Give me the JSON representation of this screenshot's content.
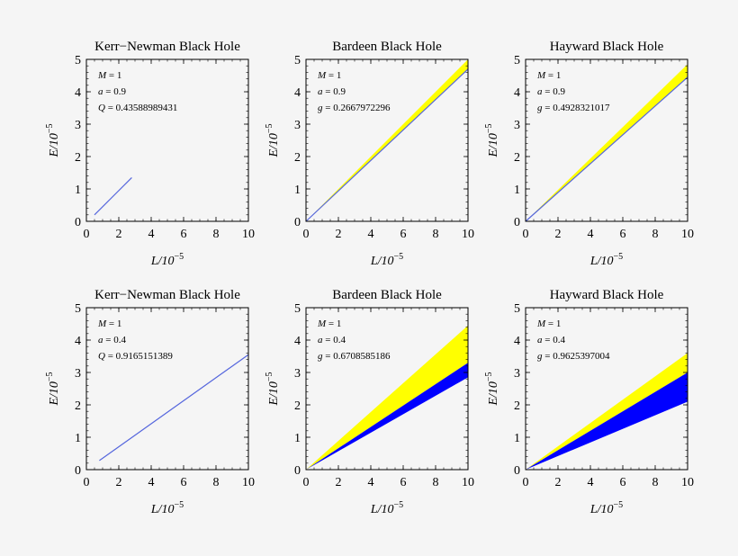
{
  "chart_data": [
    {
      "type": "area",
      "title": "Kerr−Newman Black Hole",
      "xlabel": "L/10",
      "xlabel_exp": "−5",
      "ylabel": "E/10",
      "ylabel_exp": "−5",
      "xlim": [
        0,
        10
      ],
      "ylim": [
        0,
        5
      ],
      "xticks": [
        0,
        2,
        4,
        6,
        8,
        10
      ],
      "yticks": [
        0,
        1,
        2,
        3,
        4,
        5
      ],
      "params": [
        {
          "name": "M",
          "value": "1"
        },
        {
          "name": "a",
          "value": "0.9"
        },
        {
          "name": "Q",
          "value": "0.43588989431"
        }
      ],
      "line": {
        "x": [
          0.5,
          2.8
        ],
        "y": [
          0.2,
          1.35
        ]
      },
      "bands": []
    },
    {
      "type": "area",
      "title": "Bardeen Black Hole",
      "xlabel": "L/10",
      "xlabel_exp": "−5",
      "ylabel": "E/10",
      "ylabel_exp": "−5",
      "xlim": [
        0,
        10
      ],
      "ylim": [
        0,
        5
      ],
      "xticks": [
        0,
        2,
        4,
        6,
        8,
        10
      ],
      "yticks": [
        0,
        1,
        2,
        3,
        4,
        5
      ],
      "params": [
        {
          "name": "M",
          "value": "1"
        },
        {
          "name": "a",
          "value": "0.9"
        },
        {
          "name": "g",
          "value": "0.2667972296"
        }
      ],
      "line": {
        "x": [
          0,
          10
        ],
        "y": [
          0,
          4.7
        ]
      },
      "bands": [
        {
          "color": "#ffff00",
          "x_end": 10,
          "lower_end": 4.7,
          "upper_end": 5.0
        }
      ]
    },
    {
      "type": "area",
      "title": "Hayward Black Hole",
      "xlabel": "L/10",
      "xlabel_exp": "−5",
      "ylabel": "E/10",
      "ylabel_exp": "−5",
      "xlim": [
        0,
        10
      ],
      "ylim": [
        0,
        5
      ],
      "xticks": [
        0,
        2,
        4,
        6,
        8,
        10
      ],
      "yticks": [
        0,
        1,
        2,
        3,
        4,
        5
      ],
      "params": [
        {
          "name": "M",
          "value": "1"
        },
        {
          "name": "a",
          "value": "0.9"
        },
        {
          "name": "g",
          "value": "0.4928321017"
        }
      ],
      "line": {
        "x": [
          0,
          10
        ],
        "y": [
          0,
          4.45
        ]
      },
      "bands": [
        {
          "color": "#ffff00",
          "x_end": 10,
          "lower_end": 4.45,
          "upper_end": 4.85
        }
      ]
    },
    {
      "type": "area",
      "title": "Kerr−Newman Black Hole",
      "xlabel": "L/10",
      "xlabel_exp": "−5",
      "ylabel": "E/10",
      "ylabel_exp": "−5",
      "xlim": [
        0,
        10
      ],
      "ylim": [
        0,
        5
      ],
      "xticks": [
        0,
        2,
        4,
        6,
        8,
        10
      ],
      "yticks": [
        0,
        1,
        2,
        3,
        4,
        5
      ],
      "params": [
        {
          "name": "M",
          "value": "1"
        },
        {
          "name": "a",
          "value": "0.4"
        },
        {
          "name": "Q",
          "value": "0.9165151389"
        }
      ],
      "line": {
        "x": [
          0.8,
          10
        ],
        "y": [
          0.28,
          3.55
        ]
      },
      "bands": []
    },
    {
      "type": "area",
      "title": "Bardeen Black Hole",
      "xlabel": "L/10",
      "xlabel_exp": "−5",
      "ylabel": "E/10",
      "ylabel_exp": "−5",
      "xlim": [
        0,
        10
      ],
      "ylim": [
        0,
        5
      ],
      "xticks": [
        0,
        2,
        4,
        6,
        8,
        10
      ],
      "yticks": [
        0,
        1,
        2,
        3,
        4,
        5
      ],
      "params": [
        {
          "name": "M",
          "value": "1"
        },
        {
          "name": "a",
          "value": "0.4"
        },
        {
          "name": "g",
          "value": "0.6708585186"
        }
      ],
      "line": null,
      "bands": [
        {
          "color": "#ffff00",
          "x_end": 10,
          "lower_end": 3.3,
          "upper_end": 4.45
        },
        {
          "color": "#0000ff",
          "x_end": 10,
          "lower_end": 2.85,
          "upper_end": 3.3
        }
      ]
    },
    {
      "type": "area",
      "title": "Hayward Black Hole",
      "xlabel": "L/10",
      "xlabel_exp": "−5",
      "ylabel": "E/10",
      "ylabel_exp": "−5",
      "xlim": [
        0,
        10
      ],
      "ylim": [
        0,
        5
      ],
      "xticks": [
        0,
        2,
        4,
        6,
        8,
        10
      ],
      "yticks": [
        0,
        1,
        2,
        3,
        4,
        5
      ],
      "params": [
        {
          "name": "M",
          "value": "1"
        },
        {
          "name": "a",
          "value": "0.4"
        },
        {
          "name": "g",
          "value": "0.9625397004"
        }
      ],
      "line": null,
      "bands": [
        {
          "color": "#ffff00",
          "x_end": 10,
          "lower_end": 3.0,
          "upper_end": 3.6
        },
        {
          "color": "#0000ff",
          "x_end": 10,
          "lower_end": 2.1,
          "upper_end": 3.0
        }
      ]
    }
  ]
}
